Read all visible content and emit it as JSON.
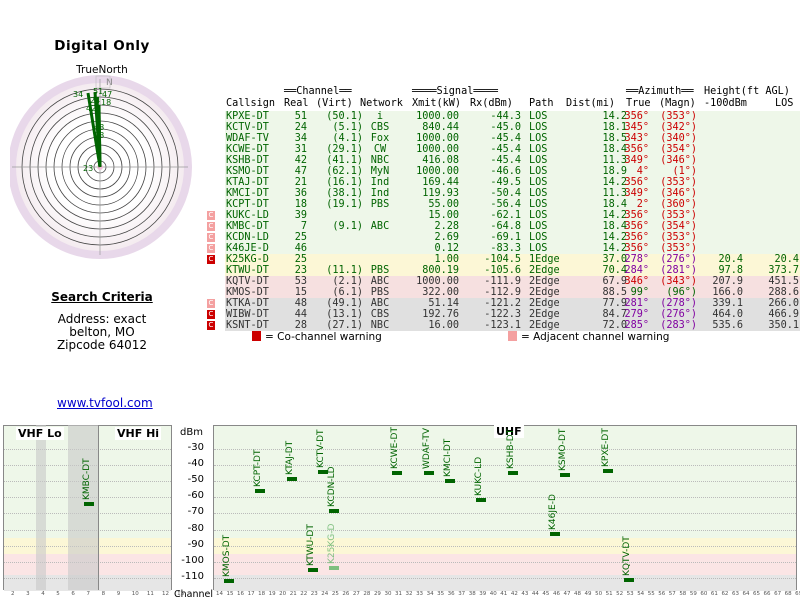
{
  "page": {
    "title": "Digital Only",
    "compass_label": "TrueNorth",
    "compass_north_letter": "N",
    "criteria_title": "Search Criteria",
    "address_lines": [
      "Address: exact",
      "belton, MO",
      "Zipcode 64012"
    ],
    "site_link": "www.tvfool.com"
  },
  "compass": {
    "labels": [
      "34",
      "51",
      "47",
      "24",
      "42",
      "18",
      "48",
      "28",
      "23"
    ]
  },
  "table": {
    "group_headers": {
      "channel": "══Channel══",
      "signal": "════Signal════",
      "azimuth": "══Azimuth══",
      "height": "Height(ft AGL)"
    },
    "columns": [
      "Callsign",
      "Real",
      "(Virt)",
      "Network",
      "Xmit(kW)",
      "Rx(dBm)",
      "Path",
      "Dist(mi)",
      "True",
      "(Magn)",
      "-100dBm",
      "LOS"
    ],
    "rows": [
      {
        "call": "KPXE-DT",
        "real": "51",
        "virt": "(50.1)",
        "net": "i",
        "xmit": "1000.00",
        "rx": "-44.3",
        "path": "LOS",
        "dist": "14.2",
        "true": "356°",
        "magn": "(353°)",
        "h100": "",
        "los": "",
        "flag": "",
        "zone": "green"
      },
      {
        "call": "KCTV-DT",
        "real": "24",
        "virt": "(5.1)",
        "net": "CBS",
        "xmit": "840.44",
        "rx": "-45.0",
        "path": "LOS",
        "dist": "18.1",
        "true": "345°",
        "magn": "(342°)",
        "h100": "",
        "los": "",
        "flag": "",
        "zone": "green"
      },
      {
        "call": "WDAF-TV",
        "real": "34",
        "virt": "(4.1)",
        "net": "Fox",
        "xmit": "1000.00",
        "rx": "-45.4",
        "path": "LOS",
        "dist": "18.5",
        "true": "343°",
        "magn": "(340°)",
        "h100": "",
        "los": "",
        "flag": "",
        "zone": "green"
      },
      {
        "call": "KCWE-DT",
        "real": "31",
        "virt": "(29.1)",
        "net": "CW",
        "xmit": "1000.00",
        "rx": "-45.4",
        "path": "LOS",
        "dist": "18.4",
        "true": "356°",
        "magn": "(354°)",
        "h100": "",
        "los": "",
        "flag": "",
        "zone": "green"
      },
      {
        "call": "KSHB-DT",
        "real": "42",
        "virt": "(41.1)",
        "net": "NBC",
        "xmit": "416.08",
        "rx": "-45.4",
        "path": "LOS",
        "dist": "11.3",
        "true": "349°",
        "magn": "(346°)",
        "h100": "",
        "los": "",
        "flag": "",
        "zone": "green"
      },
      {
        "call": "KSMO-DT",
        "real": "47",
        "virt": "(62.1)",
        "net": "MyN",
        "xmit": "1000.00",
        "rx": "-46.6",
        "path": "LOS",
        "dist": "18.9",
        "true": "4°",
        "magn": "(1°)",
        "h100": "",
        "los": "",
        "flag": "",
        "zone": "green"
      },
      {
        "call": "KTAJ-DT",
        "real": "21",
        "virt": "(16.1)",
        "net": "Ind",
        "xmit": "169.44",
        "rx": "-49.5",
        "path": "LOS",
        "dist": "14.2",
        "true": "356°",
        "magn": "(353°)",
        "h100": "",
        "los": "",
        "flag": "",
        "zone": "green"
      },
      {
        "call": "KMCI-DT",
        "real": "36",
        "virt": "(38.1)",
        "net": "Ind",
        "xmit": "119.93",
        "rx": "-50.4",
        "path": "LOS",
        "dist": "11.3",
        "true": "349°",
        "magn": "(346°)",
        "h100": "",
        "los": "",
        "flag": "",
        "zone": "green"
      },
      {
        "call": "KCPT-DT",
        "real": "18",
        "virt": "(19.1)",
        "net": "PBS",
        "xmit": "55.00",
        "rx": "-56.4",
        "path": "LOS",
        "dist": "18.4",
        "true": "2°",
        "magn": "(360°)",
        "h100": "",
        "los": "",
        "flag": "",
        "zone": "green"
      },
      {
        "call": "KUKC-LD",
        "real": "39",
        "virt": "",
        "net": "",
        "xmit": "15.00",
        "rx": "-62.1",
        "path": "LOS",
        "dist": "14.2",
        "true": "356°",
        "magn": "(353°)",
        "h100": "",
        "los": "",
        "flag": "adj",
        "zone": "green"
      },
      {
        "call": "KMBC-DT",
        "real": "7",
        "virt": "(9.1)",
        "net": "ABC",
        "xmit": "2.28",
        "rx": "-64.8",
        "path": "LOS",
        "dist": "18.4",
        "true": "356°",
        "magn": "(354°)",
        "h100": "",
        "los": "",
        "flag": "adj",
        "zone": "green"
      },
      {
        "call": "KCDN-LD",
        "real": "25",
        "virt": "",
        "net": "",
        "xmit": "2.69",
        "rx": "-69.1",
        "path": "LOS",
        "dist": "14.2",
        "true": "356°",
        "magn": "(353°)",
        "h100": "",
        "los": "",
        "flag": "adj",
        "zone": "green"
      },
      {
        "call": "K46JE-D",
        "real": "46",
        "virt": "",
        "net": "",
        "xmit": "0.12",
        "rx": "-83.3",
        "path": "LOS",
        "dist": "14.2",
        "true": "356°",
        "magn": "(353°)",
        "h100": "",
        "los": "",
        "flag": "adj",
        "zone": "green"
      },
      {
        "call": "K25KG-D",
        "real": "25",
        "virt": "",
        "net": "",
        "xmit": "1.00",
        "rx": "-104.5",
        "path": "1Edge",
        "dist": "37.0",
        "true": "278°",
        "magn": "(276°)",
        "h100": "20.4",
        "los": "20.4",
        "flag": "co",
        "zone": "yellow"
      },
      {
        "call": "KTWU-DT",
        "real": "23",
        "virt": "(11.1)",
        "net": "PBS",
        "xmit": "800.19",
        "rx": "-105.6",
        "path": "2Edge",
        "dist": "70.4",
        "true": "284°",
        "magn": "(281°)",
        "h100": "97.8",
        "los": "373.7",
        "flag": "",
        "zone": "yellow"
      },
      {
        "call": "KQTV-DT",
        "real": "53",
        "virt": "(2.1)",
        "net": "ABC",
        "xmit": "1000.00",
        "rx": "-111.9",
        "path": "2Edge",
        "dist": "67.9",
        "true": "346°",
        "magn": "(343°)",
        "h100": "207.9",
        "los": "451.5",
        "flag": "",
        "zone": "red"
      },
      {
        "call": "KMOS-DT",
        "real": "15",
        "virt": "(6.1)",
        "net": "PBS",
        "xmit": "322.00",
        "rx": "-112.9",
        "path": "2Edge",
        "dist": "88.5",
        "true": "99°",
        "magn": "(96°)",
        "h100": "166.0",
        "los": "288.6",
        "flag": "",
        "zone": "red"
      },
      {
        "call": "KTKA-DT",
        "real": "48",
        "virt": "(49.1)",
        "net": "ABC",
        "xmit": "51.14",
        "rx": "-121.2",
        "path": "2Edge",
        "dist": "77.9",
        "true": "281°",
        "magn": "(278°)",
        "h100": "339.1",
        "los": "266.0",
        "flag": "adj",
        "zone": "gray"
      },
      {
        "call": "WIBW-DT",
        "real": "44",
        "virt": "(13.1)",
        "net": "CBS",
        "xmit": "192.76",
        "rx": "-122.3",
        "path": "2Edge",
        "dist": "84.7",
        "true": "279°",
        "magn": "(276°)",
        "h100": "464.0",
        "los": "466.9",
        "flag": "co",
        "zone": "gray"
      },
      {
        "call": "KSNT-DT",
        "real": "28",
        "virt": "(27.1)",
        "net": "NBC",
        "xmit": "16.00",
        "rx": "-123.1",
        "path": "2Edge",
        "dist": "72.0",
        "true": "285°",
        "magn": "(283°)",
        "h100": "535.6",
        "los": "350.1",
        "flag": "co",
        "zone": "gray"
      }
    ],
    "legend_co": "= Co-channel warning",
    "legend_adj": "= Adjacent channel warning",
    "flag_glyph": "C"
  },
  "graph": {
    "vhf_lo": "VHF Lo",
    "vhf_hi": "VHF Hi",
    "uhf": "UHF",
    "dbm_label": "dBm",
    "channel_label": "Channel",
    "y_ticks": [
      "-30",
      "-40",
      "-50",
      "-60",
      "-70",
      "-80",
      "-90",
      "-100",
      "-110"
    ],
    "x_ticks_vhf": [
      "2",
      "3",
      "4",
      "5",
      "6",
      "7",
      "8",
      "9",
      "10",
      "11",
      "12",
      "13"
    ],
    "x_ticks_uhf": [
      "14",
      "15",
      "16",
      "17",
      "18",
      "19",
      "20",
      "21",
      "22",
      "23",
      "24",
      "25",
      "26",
      "27",
      "28",
      "29",
      "30",
      "31",
      "32",
      "33",
      "34",
      "35",
      "36",
      "37",
      "38",
      "39",
      "40",
      "41",
      "42",
      "43",
      "44",
      "45",
      "46",
      "47",
      "48",
      "49",
      "50",
      "51",
      "52",
      "53",
      "54",
      "55",
      "56",
      "57",
      "58",
      "59",
      "60",
      "61",
      "62",
      "63",
      "64",
      "65",
      "66",
      "67",
      "68",
      "69"
    ],
    "stations": [
      {
        "call": "KMBC-DT",
        "ch": 7,
        "dbm": -64.8,
        "faded": false
      },
      {
        "call": "KMOS-DT",
        "ch": 15,
        "dbm": -112.9,
        "faded": false
      },
      {
        "call": "KCPT-DT",
        "ch": 18,
        "dbm": -56.4,
        "faded": false
      },
      {
        "call": "KTAJ-DT",
        "ch": 21,
        "dbm": -49.5,
        "faded": false
      },
      {
        "call": "KTWU-DT",
        "ch": 23,
        "dbm": -105.6,
        "faded": false
      },
      {
        "call": "KCTV-DT",
        "ch": 24,
        "dbm": -45.0,
        "faded": false
      },
      {
        "call": "KCDN-LD",
        "ch": 25,
        "dbm": -69.1,
        "faded": false
      },
      {
        "call": "K25KG-D",
        "ch": 25,
        "dbm": -104.5,
        "faded": true
      },
      {
        "call": "KCWE-DT",
        "ch": 31,
        "dbm": -45.4,
        "faded": false
      },
      {
        "call": "WDAF-TV",
        "ch": 34,
        "dbm": -45.4,
        "faded": false
      },
      {
        "call": "KMCI-DT",
        "ch": 36,
        "dbm": -50.4,
        "faded": false
      },
      {
        "call": "KUKC-LD",
        "ch": 39,
        "dbm": -62.1,
        "faded": false
      },
      {
        "call": "KSHB-DT",
        "ch": 42,
        "dbm": -45.4,
        "faded": false
      },
      {
        "call": "K46JE-D",
        "ch": 46,
        "dbm": -83.3,
        "faded": false
      },
      {
        "call": "KSMO-DT",
        "ch": 47,
        "dbm": -46.6,
        "faded": false
      },
      {
        "call": "KPXE-DT",
        "ch": 51,
        "dbm": -44.3,
        "faded": false
      },
      {
        "call": "KQTV-DT",
        "ch": 53,
        "dbm": -111.9,
        "faded": false
      }
    ]
  }
}
